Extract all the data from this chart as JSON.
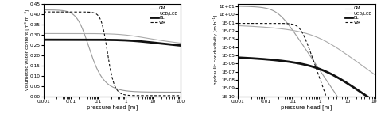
{
  "left": {
    "ylabel": "volumetric water content [m³ m⁻³]",
    "xlabel": "pressure head [m]",
    "ylim": [
      0,
      0.45
    ],
    "yticks": [
      0,
      0.05,
      0.1,
      0.15,
      0.2,
      0.25,
      0.3,
      0.35,
      0.4,
      0.45
    ],
    "xlim": [
      0.001,
      100
    ],
    "xticks": [
      0.001,
      0.01,
      0.1,
      1,
      10,
      100
    ],
    "xticklabels": [
      "0.001",
      "0.01",
      "0.1",
      "1",
      "10",
      "100"
    ],
    "legend": [
      "GM",
      "UCB/LCB",
      "BL",
      "WR"
    ]
  },
  "right": {
    "ylabel": "hydraulic conductivity [m h⁻¹]",
    "xlabel": "pressure head [m]",
    "ylim": [
      1e-10,
      20
    ],
    "xlim": [
      0.001,
      100
    ],
    "xticks": [
      0.001,
      0.01,
      0.1,
      1,
      10,
      100
    ],
    "xticklabels": [
      "0.001",
      "0.01",
      "0.1",
      "1",
      "10",
      "100"
    ],
    "yticks_exp": [
      1,
      0,
      -1,
      -2,
      -3,
      -4,
      -5,
      -6,
      -7,
      -8,
      -9,
      -10
    ],
    "legend": [
      "GM",
      "UCB/LCB",
      "BL",
      "WR"
    ]
  },
  "colors": {
    "GM": "#999999",
    "UCB_LCB": "#aaaaaa",
    "BL": "#111111",
    "WR": "#111111"
  },
  "lw_thin": 0.8,
  "lw_thick": 2.0
}
